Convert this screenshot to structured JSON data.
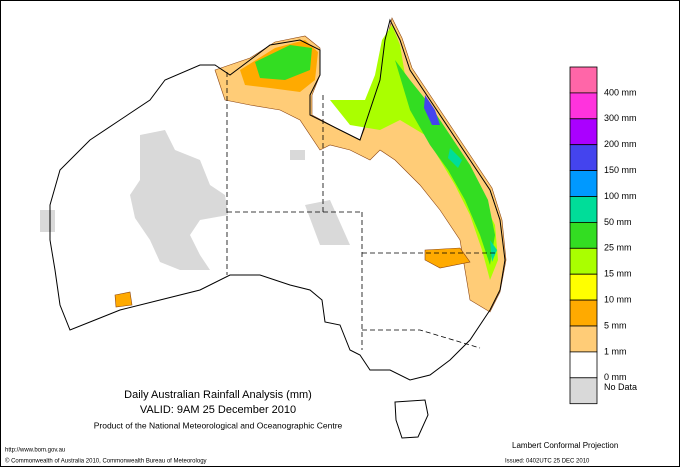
{
  "map": {
    "title": "Daily Australian Rainfall Analysis (mm)",
    "valid": "VALID: 9AM 25 December 2010",
    "product": "Product of the National Meteorological and Oceanographic Centre",
    "website": "http://www.bom.gov.au",
    "copyright": "© Commonwealth of Australia 2010, Commonwealth Bureau of Meteorology",
    "projection": "Lambert Conformal Projection",
    "issued": "Issued: 0402UTC 25 DEC 2010"
  },
  "legend": {
    "items": [
      {
        "label": "400 mm",
        "color": "#ff66a8"
      },
      {
        "label": "300 mm",
        "color": "#ff33dd"
      },
      {
        "label": "200 mm",
        "color": "#aa00ff"
      },
      {
        "label": "150 mm",
        "color": "#4444ee"
      },
      {
        "label": "100 mm",
        "color": "#0099ff"
      },
      {
        "label": "50 mm",
        "color": "#00dd99"
      },
      {
        "label": "25 mm",
        "color": "#33dd22"
      },
      {
        "label": "15 mm",
        "color": "#aaff00"
      },
      {
        "label": "10 mm",
        "color": "#ffff00"
      },
      {
        "label": "5 mm",
        "color": "#ffaa00"
      },
      {
        "label": "1 mm",
        "color": "#ffcc77"
      },
      {
        "label": "0 mm",
        "color": "#ffffff"
      },
      {
        "label": "No Data",
        "color": "#d9d9d9"
      }
    ]
  }
}
